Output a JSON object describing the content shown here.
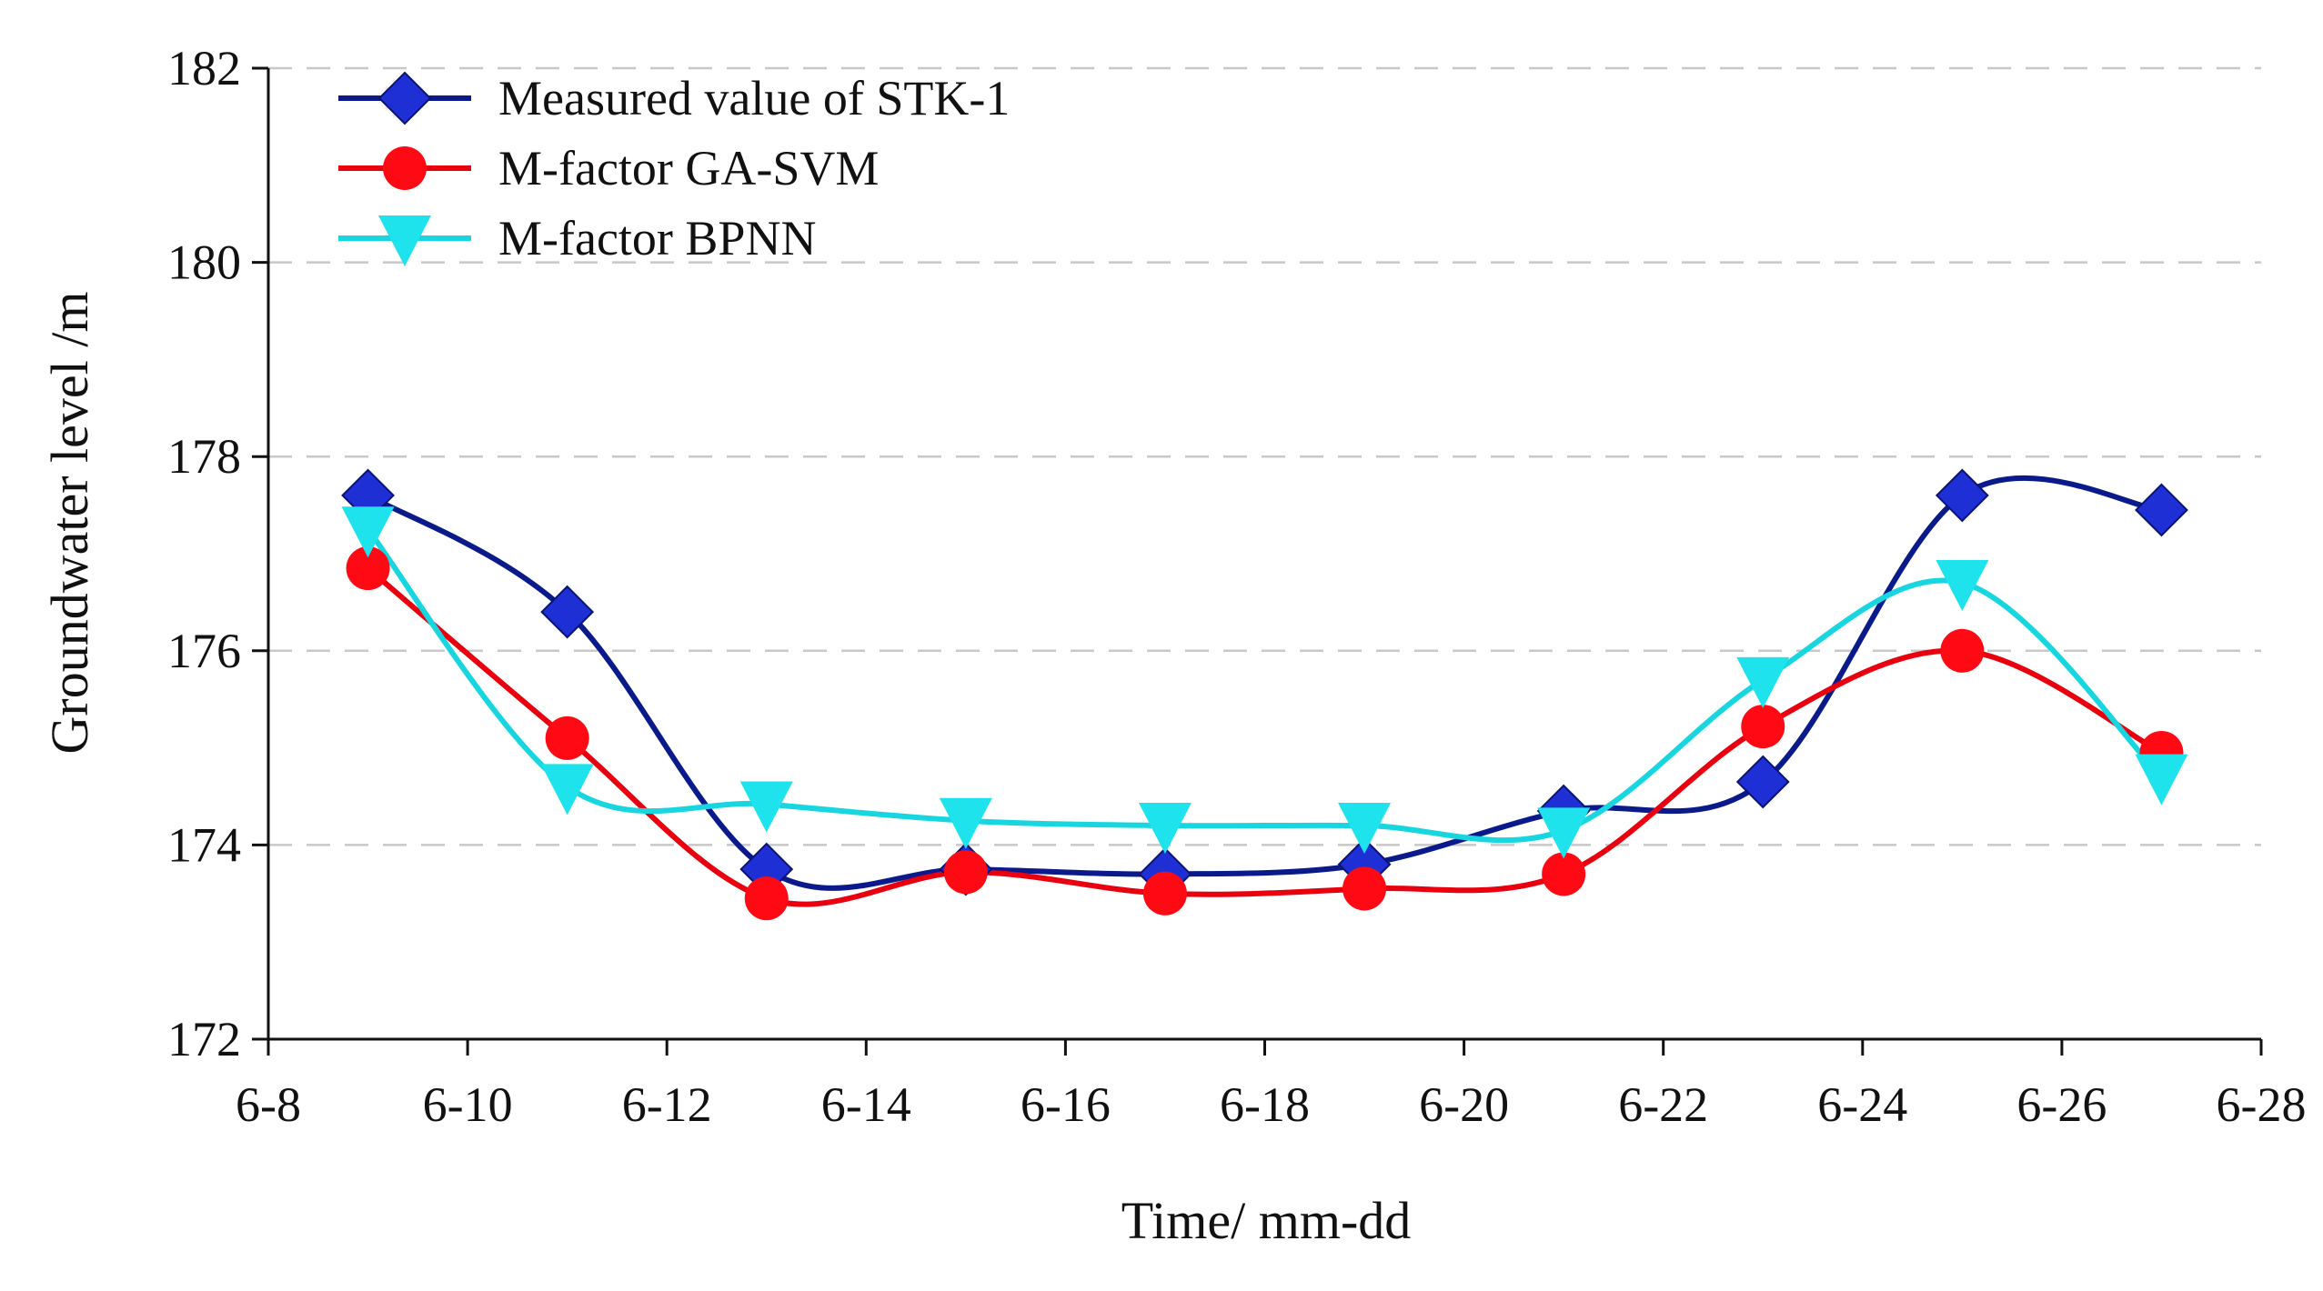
{
  "chart_data": {
    "type": "line",
    "title": "",
    "xlabel": "Time/ mm-dd",
    "ylabel": "Groundwater level /m",
    "xlim": [
      8,
      28
    ],
    "ylim": [
      172,
      182
    ],
    "x_ticks": [
      8,
      10,
      12,
      14,
      16,
      18,
      20,
      22,
      24,
      26,
      28
    ],
    "x_tick_labels": [
      "6-8",
      "6-10",
      "6-12",
      "6-14",
      "6-16",
      "6-18",
      "6-20",
      "6-22",
      "6-24",
      "6-26",
      "6-28"
    ],
    "y_ticks": [
      172,
      174,
      176,
      178,
      180,
      182
    ],
    "y_tick_labels": [
      "172",
      "174",
      "176",
      "178",
      "180",
      "182"
    ],
    "grid": "horizontal dashed",
    "legend_position": "top-left",
    "x": [
      9,
      11,
      13,
      15,
      17,
      19,
      21,
      23,
      25,
      27
    ],
    "series": [
      {
        "name": "Measured value of  STK-1",
        "color": "#0a1a8a",
        "marker_color": "#1f2fd6",
        "marker": "diamond",
        "values": [
          177.6,
          176.4,
          173.75,
          173.75,
          173.7,
          173.8,
          174.35,
          174.65,
          177.6,
          177.45
        ]
      },
      {
        "name": "M-factor GA-SVM",
        "color": "#e8000f",
        "marker_color": "#ff0a14",
        "marker": "circle",
        "values": [
          176.85,
          175.1,
          173.45,
          173.72,
          173.5,
          173.55,
          173.7,
          175.22,
          176.0,
          174.95
        ]
      },
      {
        "name": "M-factor BPNN",
        "color": "#18d6e0",
        "marker_color": "#1ee3ec",
        "marker": "triangle-down",
        "values": [
          177.25,
          174.6,
          174.42,
          174.25,
          174.2,
          174.2,
          174.15,
          175.7,
          176.7,
          174.7
        ]
      }
    ]
  }
}
